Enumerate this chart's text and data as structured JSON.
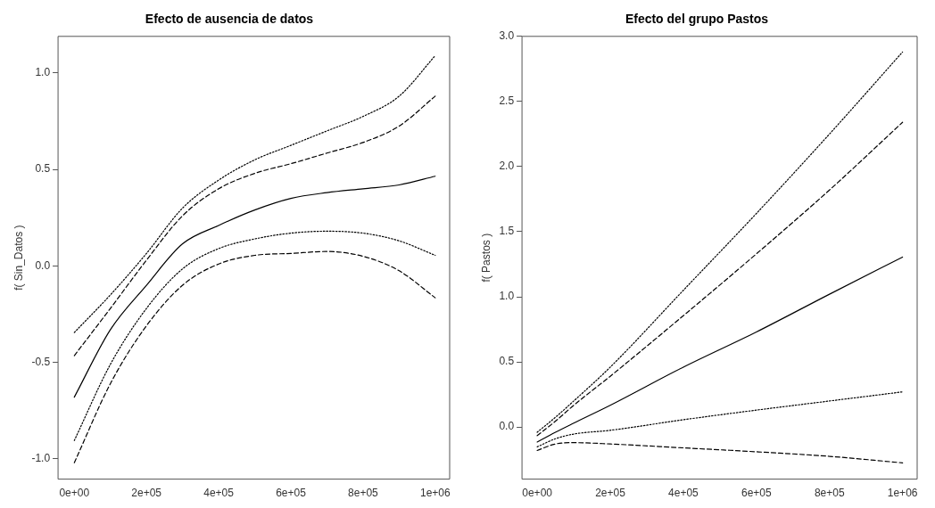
{
  "chart_data": [
    {
      "type": "line",
      "title": "Efecto de ausencia de datos",
      "ylabel": "f( Sin_Datos )",
      "grid": false,
      "legend": false,
      "marker": "none",
      "xlim": [
        -45000,
        1040000
      ],
      "xticks": [
        {
          "value": 0,
          "label": "0e+00"
        },
        {
          "value": 200000,
          "label": "2e+05"
        },
        {
          "value": 400000,
          "label": "4e+05"
        },
        {
          "value": 600000,
          "label": "6e+05"
        },
        {
          "value": 800000,
          "label": "8e+05"
        },
        {
          "value": 1000000,
          "label": "1e+06"
        }
      ],
      "ylim": [
        -1.105,
        1.19
      ],
      "yticks": [
        {
          "value": -1,
          "label": "-1.0"
        },
        -0.5,
        {
          "value": 0,
          "label": "0.0"
        },
        0.5,
        {
          "value": 1,
          "label": "1.0"
        }
      ],
      "x": [
        0,
        100000,
        200000,
        300000,
        400000,
        500000,
        600000,
        700000,
        800000,
        900000,
        1000000
      ],
      "series": [
        {
          "color": "#000000",
          "line_style": "solid",
          "values": [
            -0.68,
            -0.33,
            -0.1,
            0.115,
            0.21,
            0.29,
            0.35,
            0.38,
            0.4,
            0.42,
            0.465
          ]
        },
        {
          "color": "#000000",
          "line_style": "dashed",
          "values": [
            -0.465,
            -0.22,
            0.03,
            0.26,
            0.4,
            0.48,
            0.53,
            0.585,
            0.64,
            0.725,
            0.88
          ]
        },
        {
          "color": "#000000",
          "line_style": "dotted",
          "values": [
            -0.345,
            -0.15,
            0.065,
            0.3,
            0.445,
            0.55,
            0.625,
            0.7,
            0.775,
            0.88,
            1.09
          ]
        },
        {
          "color": "#000000",
          "line_style": "dotted",
          "values": [
            -0.905,
            -0.51,
            -0.22,
            -0.015,
            0.09,
            0.14,
            0.17,
            0.18,
            0.17,
            0.13,
            0.055
          ]
        },
        {
          "color": "#000000",
          "line_style": "dashed",
          "values": [
            -1.02,
            -0.61,
            -0.31,
            -0.1,
            0.01,
            0.055,
            0.065,
            0.075,
            0.05,
            -0.025,
            -0.165
          ]
        }
      ]
    },
    {
      "type": "line",
      "title": "Efecto del grupo Pastos",
      "ylabel": "f( Pastos )",
      "grid": false,
      "legend": false,
      "marker": "none",
      "xlim": [
        -41600,
        1040000
      ],
      "xticks": [
        {
          "value": 0,
          "label": "0e+00"
        },
        {
          "value": 200000,
          "label": "2e+05"
        },
        {
          "value": 400000,
          "label": "4e+05"
        },
        {
          "value": 600000,
          "label": "6e+05"
        },
        {
          "value": 800000,
          "label": "8e+05"
        },
        {
          "value": 1000000,
          "label": "1e+06"
        }
      ],
      "ylim": [
        -0.4,
        3
      ],
      "yticks": [
        {
          "value": 0,
          "label": "0.0"
        },
        0.5,
        {
          "value": 1,
          "label": "1.0"
        },
        1.5,
        {
          "value": 2,
          "label": "2.0"
        },
        2.5,
        {
          "value": 3,
          "label": "3.0"
        }
      ],
      "x": [
        0,
        50000,
        100000,
        200000,
        400000,
        600000,
        800000,
        1000000
      ],
      "series": [
        {
          "color": "#000000",
          "line_style": "solid",
          "values": [
            -0.115,
            -0.04,
            0.03,
            0.167,
            0.46,
            0.73,
            1.02,
            1.305
          ]
        },
        {
          "color": "#000000",
          "line_style": "dashed",
          "values": [
            -0.066,
            0.045,
            0.167,
            0.39,
            0.855,
            1.33,
            1.82,
            2.34
          ]
        },
        {
          "color": "#000000",
          "line_style": "dotted",
          "values": [
            -0.04,
            0.075,
            0.2,
            0.46,
            1.05,
            1.64,
            2.25,
            2.88
          ]
        },
        {
          "color": "#000000",
          "line_style": "dotted",
          "values": [
            -0.152,
            -0.09,
            -0.054,
            -0.025,
            0.056,
            0.13,
            0.2,
            0.27
          ]
        },
        {
          "color": "#000000",
          "line_style": "dashed",
          "values": [
            -0.18,
            -0.13,
            -0.12,
            -0.13,
            -0.16,
            -0.19,
            -0.225,
            -0.275
          ]
        }
      ]
    }
  ]
}
